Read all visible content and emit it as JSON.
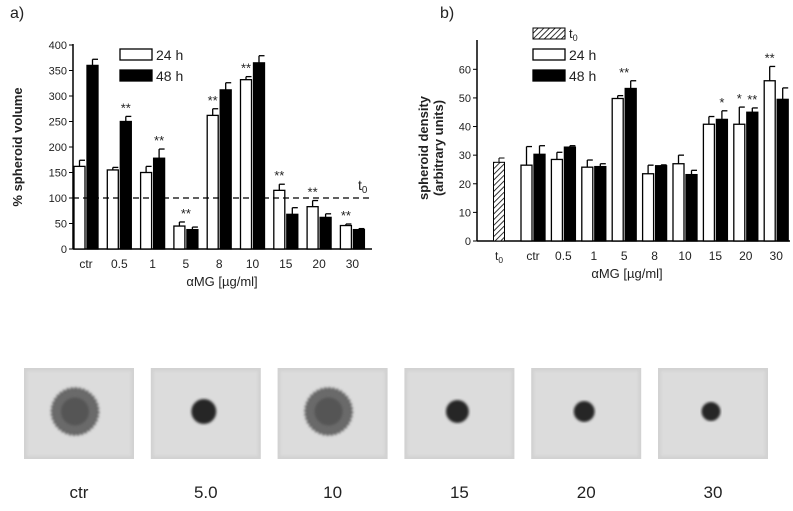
{
  "chart_data": [
    {
      "panel_label": "a)",
      "type": "bar",
      "ylabel": "% spheroid volume",
      "xlabel": "αMG [µg/ml]",
      "ylim": [
        0,
        400
      ],
      "yticks": [
        "0",
        "50",
        "100",
        "150",
        "200",
        "250",
        "300",
        "350",
        "400"
      ],
      "categories": [
        "ctr",
        "0.5",
        "1",
        "5",
        "8",
        "10",
        "15",
        "20",
        "30"
      ],
      "series": [
        {
          "name": "24 h",
          "color": "#ffffff",
          "values": [
            162,
            155,
            150,
            45,
            262,
            332,
            115,
            83,
            46
          ],
          "errors": [
            12,
            5,
            12,
            8,
            13,
            6,
            12,
            12,
            3
          ]
        },
        {
          "name": "48 h",
          "color": "#000000",
          "values": [
            360,
            250,
            178,
            38,
            312,
            365,
            68,
            62,
            38
          ],
          "errors": [
            12,
            10,
            18,
            5,
            14,
            14,
            13,
            7,
            2
          ]
        }
      ],
      "reference_line": {
        "value": 100,
        "label": "t",
        "label_sub": "0"
      },
      "significance": [
        {
          "category": "0.5",
          "series": 1,
          "mark": "**"
        },
        {
          "category": "1",
          "series": 1,
          "mark": "**"
        },
        {
          "category": "5",
          "series": -1,
          "mark": "**"
        },
        {
          "category": "8",
          "series": 0,
          "mark": "**"
        },
        {
          "category": "10",
          "series": 0,
          "mark": "**"
        },
        {
          "category": "15",
          "series": 0,
          "mark": "**"
        },
        {
          "category": "20",
          "series": 0,
          "mark": "**"
        },
        {
          "category": "30",
          "series": 0,
          "mark": "**"
        }
      ],
      "legend_placement": "top-left"
    },
    {
      "panel_label": "b)",
      "type": "bar",
      "ylabel": "spheroid density",
      "ylabel2": "(arbitrary units)",
      "xlabel": "αMG [µg/ml]",
      "ylim": [
        0,
        65
      ],
      "yticks": [
        "0",
        "10",
        "20",
        "30",
        "40",
        "50",
        "60"
      ],
      "baseline": {
        "name": "t",
        "name_sub": "0",
        "value": 27.5,
        "error": 1.5,
        "pattern": "hatched"
      },
      "categories": [
        "ctr",
        "0.5",
        "1",
        "5",
        "8",
        "10",
        "15",
        "20",
        "30"
      ],
      "series": [
        {
          "name": "24 h",
          "color": "#ffffff",
          "values": [
            26.5,
            28.5,
            25.8,
            49.8,
            23.5,
            27,
            40.8,
            40.8,
            56
          ],
          "errors": [
            6.5,
            2.5,
            2.5,
            1,
            3,
            3,
            2.7,
            6,
            5
          ]
        },
        {
          "name": "48 h",
          "color": "#000000",
          "values": [
            30.3,
            32.8,
            26,
            53.3,
            26.3,
            23.2,
            42.5,
            45,
            49.5
          ],
          "errors": [
            3,
            0.5,
            1,
            2.7,
            0.3,
            1.5,
            3,
            1.5,
            4
          ]
        }
      ],
      "significance": [
        {
          "category": "5",
          "series": -1,
          "mark": "**"
        },
        {
          "category": "15",
          "series": 1,
          "mark": "*"
        },
        {
          "category": "20",
          "series": 0,
          "mark": "*"
        },
        {
          "category": "20",
          "series": 1,
          "mark": "**"
        },
        {
          "category": "30",
          "series": 0,
          "mark": "**"
        }
      ],
      "legend_placement": "top-left"
    }
  ],
  "images": [
    {
      "label": "ctr",
      "spheroid": "large-loose"
    },
    {
      "label": "5.0",
      "spheroid": "small-dense"
    },
    {
      "label": "10",
      "spheroid": "large-loose"
    },
    {
      "label": "15",
      "spheroid": "small-dense"
    },
    {
      "label": "20",
      "spheroid": "small-dense"
    },
    {
      "label": "30",
      "spheroid": "small-dense"
    }
  ]
}
